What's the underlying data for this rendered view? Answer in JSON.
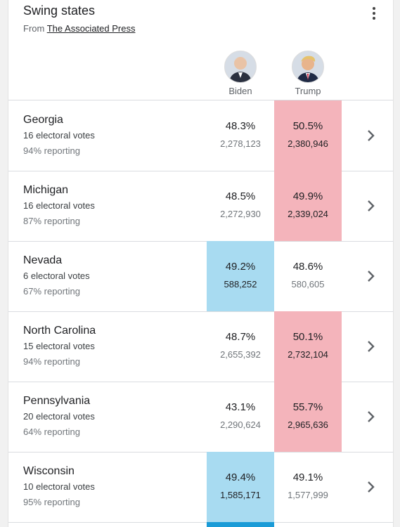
{
  "header": {
    "title": "Swing states",
    "source_prefix": "From",
    "source_link": "The Associated Press"
  },
  "candidates": [
    {
      "name": "Biden"
    },
    {
      "name": "Trump"
    }
  ],
  "colors": {
    "trump_win": "#f4b4bb",
    "biden_win": "#a8dbf1"
  },
  "states": [
    {
      "name": "Georgia",
      "electoral": "16 electoral votes",
      "reporting": "94% reporting",
      "biden_pct": "48.3%",
      "biden_votes": "2,278,123",
      "trump_pct": "50.5%",
      "trump_votes": "2,380,946",
      "leader": "trump"
    },
    {
      "name": "Michigan",
      "electoral": "16 electoral votes",
      "reporting": "87% reporting",
      "biden_pct": "48.5%",
      "biden_votes": "2,272,930",
      "trump_pct": "49.9%",
      "trump_votes": "2,339,024",
      "leader": "trump"
    },
    {
      "name": "Nevada",
      "electoral": "6 electoral votes",
      "reporting": "67% reporting",
      "biden_pct": "49.2%",
      "biden_votes": "588,252",
      "trump_pct": "48.6%",
      "trump_votes": "580,605",
      "leader": "biden"
    },
    {
      "name": "North Carolina",
      "electoral": "15 electoral votes",
      "reporting": "94% reporting",
      "biden_pct": "48.7%",
      "biden_votes": "2,655,392",
      "trump_pct": "50.1%",
      "trump_votes": "2,732,104",
      "leader": "trump"
    },
    {
      "name": "Pennsylvania",
      "electoral": "20 electoral votes",
      "reporting": "64% reporting",
      "biden_pct": "43.1%",
      "biden_votes": "2,290,624",
      "trump_pct": "55.7%",
      "trump_votes": "2,965,636",
      "leader": "trump"
    },
    {
      "name": "Wisconsin",
      "electoral": "10 electoral votes",
      "reporting": "95% reporting",
      "biden_pct": "49.4%",
      "biden_votes": "1,585,171",
      "trump_pct": "49.1%",
      "trump_votes": "1,577,999",
      "leader": "biden"
    }
  ]
}
